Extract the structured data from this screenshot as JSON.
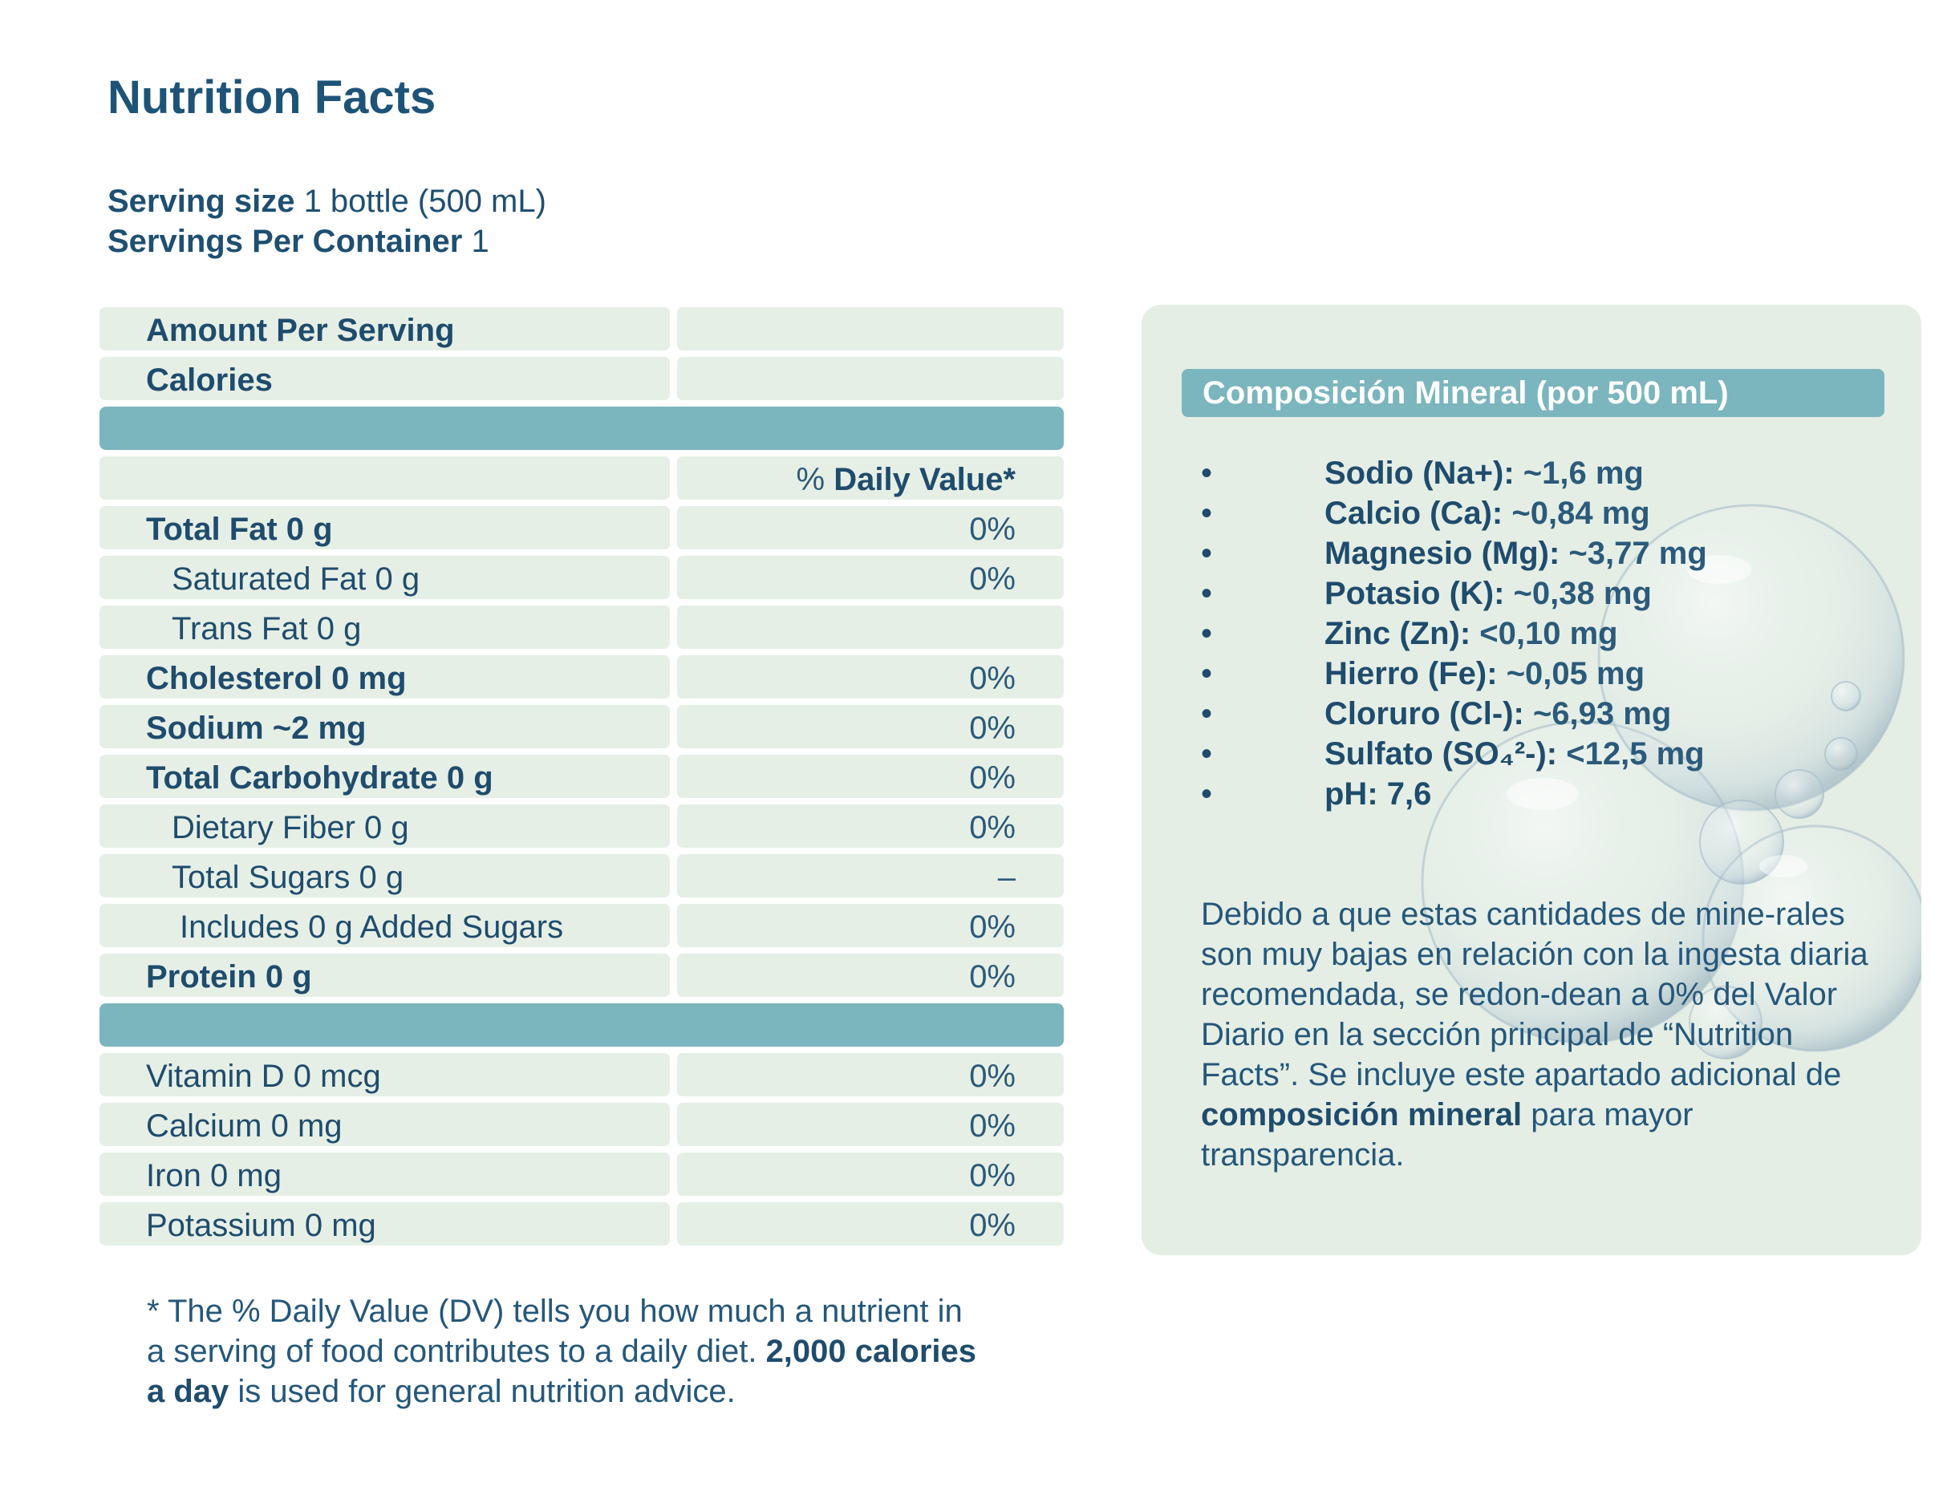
{
  "title": "Nutrition Facts",
  "serving": {
    "size_label": "Serving size",
    "size_value": "1 bottle (500 mL)",
    "per_container_label": "Servings Per Container",
    "per_container_value": "1"
  },
  "table": {
    "amount_per_serving": "Amount Per Serving",
    "calories": "Calories",
    "dv_prefix": "% ",
    "dv_label": "Daily Value*",
    "nutrients": [
      {
        "label": "Total Fat 0 g",
        "value": "0%"
      },
      {
        "label": "Saturated Fat 0 g",
        "value": "0%"
      },
      {
        "label": "Trans Fat 0 g",
        "value": ""
      },
      {
        "label": "Cholesterol 0 mg",
        "value": "0%"
      },
      {
        "label": "Sodium ~2 mg",
        "value": "0%"
      },
      {
        "label": "Total Carbohydrate 0 g",
        "value": "0%"
      },
      {
        "label": "Dietary Fiber 0 g",
        "value": "0%"
      },
      {
        "label": "Total Sugars 0 g",
        "value": "–"
      },
      {
        "label": "Includes 0 g Added Sugars",
        "value": "0%"
      },
      {
        "label": "Protein 0 g",
        "value": "0%"
      }
    ],
    "vitamins": [
      {
        "label": "Vitamin D 0 mcg",
        "value": "0%"
      },
      {
        "label": "Calcium 0 mg",
        "value": "0%"
      },
      {
        "label": "Iron 0 mg",
        "value": "0%"
      },
      {
        "label": "Potassium 0 mg",
        "value": "0%"
      }
    ]
  },
  "footnote": {
    "part1": "* The % Daily Value (DV) tells you how much a nutrient in a serving of food contributes to a daily diet. ",
    "bold": "2,000 calories a day",
    "part2": " is used for general nutrition advice."
  },
  "mineral": {
    "header": "Composición Mineral (por 500 mL)",
    "bullet": "•",
    "items": [
      {
        "label": "Sodio (Na+):",
        "value": " ~1,6 mg"
      },
      {
        "label": "Calcio (Ca):",
        "value": " ~0,84 mg"
      },
      {
        "label": "Magnesio (Mg):",
        "value": " ~3,77 mg"
      },
      {
        "label": "Potasio (K):",
        "value": " ~0,38 mg"
      },
      {
        "label": "Zinc (Zn):",
        "value": " <0,10 mg"
      },
      {
        "label": "Hierro (Fe):",
        "value": " ~0,05 mg"
      },
      {
        "label": "Cloruro (Cl-):",
        "value": " ~6,93 mg"
      },
      {
        "label": "Sulfato (SO₄²-):",
        "value": " <12,5 mg"
      },
      {
        "label": "pH: 7,6",
        "value": ""
      }
    ],
    "para_part1": "Debido a que estas cantidades de mine-rales son muy bajas en relación con la ingesta diaria recomendada, se redon-dean a 0% del Valor Diario en la sección principal de “Nutrition Facts”. Se incluye este apartado adicional de ",
    "para_bold": "composición mineral",
    "para_part2": " para mayor transparencia."
  },
  "colors": {
    "title": "#1e5378",
    "row_bg": "#e6efe6",
    "bar_bg": "#7bb5bd",
    "panel_bg": "#e5eee5"
  }
}
